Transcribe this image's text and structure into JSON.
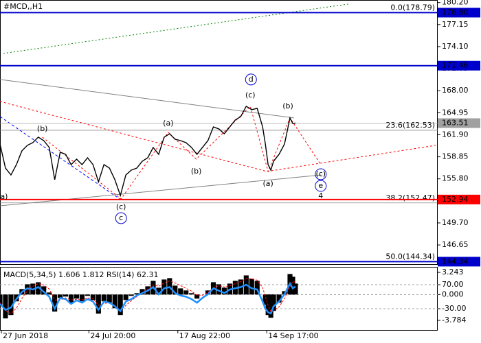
{
  "chart_data": [
    {
      "type": "line",
      "title": "#MCD,,H1",
      "x": [
        0,
        2,
        4,
        6,
        8,
        10,
        12,
        14,
        16,
        18,
        20,
        22,
        24,
        26,
        28,
        30,
        32,
        34,
        36,
        38,
        40,
        42,
        44,
        46,
        48,
        50,
        52,
        54,
        56,
        58,
        60,
        62,
        64,
        66,
        68,
        70,
        72,
        74,
        76,
        78,
        80,
        82,
        84,
        86,
        88,
        90,
        92,
        94,
        96,
        97,
        98,
        99,
        100,
        102,
        104,
        106,
        107,
        108
      ],
      "series": [
        {
          "color": "#000000",
          "values": [
            160.62,
            157.29,
            156.34,
            157.77,
            159.67,
            160.43,
            160.81,
            161.57,
            161.09,
            160.14,
            155.68,
            159.48,
            159.19,
            157.77,
            158.53,
            157.77,
            158.72,
            157.77,
            155.39,
            157.77,
            157.29,
            155.68,
            153.49,
            156.34,
            157.01,
            157.29,
            158.24,
            158.72,
            160.14,
            159.19,
            161.57,
            162.04,
            161.28,
            161.09,
            160.81,
            160.14,
            159.19,
            160.14,
            161.09,
            162.99,
            162.71,
            162.04,
            162.99,
            163.94,
            164.42,
            165.84,
            165.37,
            165.56,
            162.99,
            160.62,
            157.77,
            157.01,
            158.24,
            159.19,
            160.62,
            164.23,
            163.47,
            163.51
          ]
        }
      ],
      "xlim": [
        0,
        160
      ],
      "ylim": [
        144.0,
        180.55
      ],
      "xticks": [
        {
          "value": 0.5,
          "label": "27 Jun 2018"
        },
        {
          "value": 32.5,
          "label": "24 Jul 20:00"
        },
        {
          "value": 65,
          "label": "17 Aug 22:00"
        },
        {
          "value": 97.5,
          "label": "14 Sep 17:00"
        }
      ],
      "yticks": [
        {
          "value": 180.2,
          "label": "180.20"
        },
        177.15,
        {
          "value": 174.1,
          "label": "174.10"
        },
        171.05,
        {
          "value": 168,
          "label": "168.00"
        },
        164.95,
        {
          "value": 161.9,
          "label": "161.90"
        },
        158.85,
        {
          "value": 155.8,
          "label": "155.80"
        },
        152.75,
        {
          "value": 149.7,
          "label": "149.70"
        },
        146.65
      ],
      "levels": [
        {
          "value": 178.8,
          "label": "178.80",
          "color": "#0000cc"
        },
        {
          "value": 171.46,
          "color": "#0000cc"
        },
        {
          "value": 152.94,
          "color": "#ff0000"
        },
        {
          "value": 144.34,
          "color": "#0000cc"
        }
      ],
      "current_price": {
        "value": 163.51,
        "label": "163.51",
        "color": "#a0a0a0"
      },
      "fib_levels": [
        {
          "value": 178.79,
          "label": "0.0(178.79)"
        },
        {
          "value": 162.53,
          "label": "23.6(162.53)"
        },
        {
          "value": 152.47,
          "label": "38.2(152.47)"
        },
        {
          "value": 144.34,
          "label": "50.0(144.34)"
        }
      ],
      "overlays": [
        {
          "color": "#008000",
          "dash": "2,3",
          "x": [
            1.25,
            127.5
          ],
          "y": [
            173.16,
            180.0
          ]
        },
        {
          "color": "#808080",
          "dash": "",
          "x": [
            0,
            107.5
          ],
          "y": [
            169.55,
            164.23
          ]
        },
        {
          "color": "#808080",
          "dash": "",
          "x": [
            0,
            117.5
          ],
          "y": [
            152.07,
            156.34
          ]
        },
        {
          "color": "#ff0000",
          "dash": "3,3",
          "x": [
            0,
            97.5,
            159.25
          ],
          "y": [
            166.51,
            156.82,
            160.43
          ]
        },
        {
          "color": "#0000ff",
          "dash": "4,3",
          "x": [
            0,
            43.75
          ],
          "y": [
            164.42,
            153.02
          ]
        },
        {
          "color": "#ff0000",
          "dash": "3,3",
          "x": [
            15.5,
            44.25,
            61.5,
            71.75,
            91.5,
            98,
            106,
            117.25
          ],
          "y": [
            161.57,
            153.02,
            162.23,
            158.53,
            165.84,
            156.82,
            164.23,
            157.77
          ]
        }
      ],
      "wave_labels": [
        {
          "label": "a)",
          "x": 1.5,
          "y": 153.3,
          "color": "#ff0000"
        },
        {
          "label": "(b)",
          "x": 15.5,
          "y": 162.71,
          "color": "#ff0000"
        },
        {
          "label": "(c)",
          "x": 44.25,
          "y": 151.88,
          "color": "#ff0000"
        },
        {
          "label": "c",
          "x": 44.25,
          "y": 150.36,
          "color": "#0000cc",
          "circled": true
        },
        {
          "label": "(a)",
          "x": 61.5,
          "y": 163.47,
          "color": "#ff0000"
        },
        {
          "label": "(b)",
          "x": 71.75,
          "y": 156.82,
          "color": "#ff0000"
        },
        {
          "label": "(c)",
          "x": 91.5,
          "y": 167.36,
          "color": "#ff0000"
        },
        {
          "label": "d",
          "x": 91.75,
          "y": 169.55,
          "color": "#0000cc",
          "circled": true
        },
        {
          "label": "(a)",
          "x": 98,
          "y": 155.11,
          "color": "#ff0000"
        },
        {
          "label": "(b)",
          "x": 105.25,
          "y": 165.84,
          "color": "#ff0000"
        },
        {
          "label": "(c)",
          "x": 117.25,
          "y": 156.44,
          "color": "#ff0000",
          "circled": true
        },
        {
          "label": "e",
          "x": 117.25,
          "y": 154.82,
          "color": "#0000cc",
          "circled": true
        },
        {
          "label": "4",
          "x": 117.25,
          "y": 153.4,
          "color": "#0000cc"
        }
      ]
    },
    {
      "type": "indicator",
      "label": "MACD(5,34,5) 1.606 1.812 RSI(14) 62.31",
      "ylim": [
        -5.29,
        3.95
      ],
      "yticks": [
        3.243,
        {
          "value": 0,
          "label": "0.000"
        },
        -3.784
      ],
      "y2lim": [
        -121.4,
        141.4
      ],
      "y2ticks": [
        {
          "value": 70,
          "label": "70.00"
        },
        {
          "value": -30,
          "label": "-30.00"
        }
      ],
      "series": [
        {
          "style": "bar",
          "color": "#000000",
          "values": [
            -1.5,
            -3.5,
            -3.0,
            -1.0,
            0.8,
            1.5,
            1.6,
            1.8,
            1.2,
            0.3,
            -2.5,
            -0.5,
            -0.3,
            -1.2,
            -0.6,
            -1.0,
            -0.2,
            -0.8,
            -2.8,
            -1.0,
            -1.2,
            -2.0,
            -3.0,
            -0.8,
            -0.2,
            0.2,
            0.8,
            1.2,
            2.0,
            1.0,
            2.2,
            2.4,
            1.3,
            0.9,
            0.6,
            0.2,
            -0.6,
            0.0,
            0.6,
            1.8,
            1.5,
            1.0,
            1.6,
            2.0,
            2.2,
            2.8,
            2.3,
            2.0,
            0.0,
            -1.5,
            -3.0,
            -3.4,
            -2.4,
            -1.2,
            0.5,
            3.0,
            2.6,
            1.606
          ]
        },
        {
          "style": "dashed",
          "color": "#ff0000",
          "values": [
            -1.2,
            -2.4,
            -2.8,
            -2.0,
            -0.6,
            0.6,
            1.2,
            1.6,
            1.4,
            0.8,
            -0.8,
            -0.8,
            -0.5,
            -0.8,
            -0.7,
            -0.8,
            -0.5,
            -0.6,
            -1.6,
            -1.3,
            -1.2,
            -1.6,
            -2.3,
            -1.6,
            -0.9,
            -0.3,
            0.3,
            0.8,
            1.4,
            1.2,
            1.7,
            2.0,
            1.7,
            1.3,
            0.9,
            0.5,
            -0.1,
            -0.1,
            0.3,
            1.0,
            1.3,
            1.1,
            1.3,
            1.6,
            1.9,
            2.3,
            2.3,
            2.1,
            1.0,
            -0.3,
            -1.6,
            -2.5,
            -2.4,
            -1.8,
            -0.6,
            1.2,
            1.9,
            1.812
          ]
        },
        {
          "style": "line",
          "color": "#1e90ff",
          "axis": "y2",
          "values": [
            -10,
            -35,
            -25,
            10,
            40,
            55,
            50,
            60,
            40,
            20,
            -30,
            15,
            10,
            -10,
            5,
            -5,
            10,
            0,
            -35,
            0,
            -5,
            -20,
            -40,
            0,
            10,
            25,
            35,
            45,
            60,
            30,
            55,
            60,
            35,
            25,
            20,
            10,
            -5,
            15,
            30,
            55,
            45,
            35,
            50,
            55,
            60,
            70,
            55,
            50,
            0,
            -30,
            -45,
            -50,
            -20,
            0,
            30,
            75,
            55,
            62.31
          ]
        }
      ]
    }
  ]
}
